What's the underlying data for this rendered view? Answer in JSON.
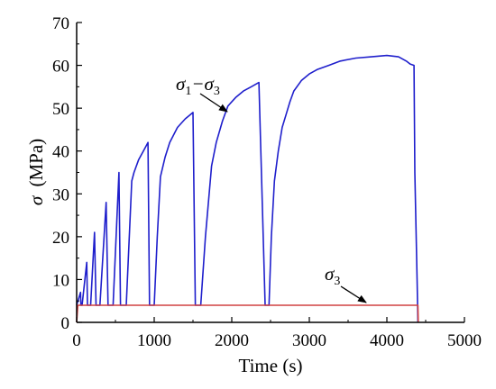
{
  "chart_data": {
    "type": "line",
    "title": "",
    "xlabel": "Time (s)",
    "ylabel": {
      "symbol": "σ",
      "unit": "(MPa)"
    },
    "xlim": [
      0,
      5000
    ],
    "ylim": [
      0,
      70
    ],
    "xticks": [
      "0",
      "1000",
      "2000",
      "3000",
      "4000",
      "5000"
    ],
    "yticks": [
      "0",
      "10",
      "20",
      "30",
      "40",
      "50",
      "60",
      "70"
    ],
    "grid": false,
    "colors": {
      "deviatoric": "#1f1fcc",
      "confining": "#d04040",
      "axes": "#000000"
    },
    "series": [
      {
        "name": "σ1−σ3",
        "color": "#1f1fcc",
        "x": [
          0,
          50,
          55,
          65,
          70,
          130,
          140,
          170,
          180,
          230,
          250,
          285,
          300,
          380,
          405,
          440,
          470,
          545,
          565,
          610,
          640,
          710,
          740,
          800,
          860,
          920,
          940,
          975,
          1000,
          1040,
          1080,
          1140,
          1200,
          1300,
          1400,
          1500,
          1530,
          1570,
          1600,
          1660,
          1740,
          1800,
          1880,
          1950,
          2050,
          2150,
          2250,
          2350,
          2430,
          2460,
          2480,
          2510,
          2550,
          2600,
          2650,
          2700,
          2750,
          2800,
          2900,
          3000,
          3100,
          3250,
          3400,
          3600,
          3800,
          4000,
          4150,
          4250,
          4300,
          4350,
          4360,
          4390,
          4400
        ],
        "y": [
          4,
          7,
          4,
          4,
          4,
          14,
          4,
          4,
          4,
          21,
          4,
          4,
          4,
          28,
          4,
          4,
          4,
          35,
          4,
          4,
          4,
          33,
          35,
          38,
          40,
          42,
          4,
          4,
          4,
          20,
          34,
          38.5,
          42,
          45.5,
          47.5,
          49,
          4,
          4,
          4,
          20,
          36.5,
          42,
          47,
          50.5,
          52.5,
          54,
          55,
          56,
          4,
          4,
          4,
          20,
          33,
          40,
          45.5,
          48.5,
          51.5,
          54,
          56.5,
          58,
          59,
          60,
          61,
          61.7,
          62,
          62.3,
          62,
          61,
          60.3,
          60,
          35,
          10,
          0
        ]
      },
      {
        "name": "σ3",
        "color": "#d04040",
        "x": [
          0,
          15,
          30,
          4400,
          4405
        ],
        "y": [
          0,
          4,
          4,
          4,
          0
        ]
      }
    ],
    "annotations": [
      {
        "label_main": "σ",
        "label_sub": "1",
        "label_mid": "−σ",
        "label_sub2": "3",
        "target_x": 1950,
        "target_y": 49.5
      },
      {
        "label_main": "σ",
        "label_sub": "3",
        "target_x": 3450,
        "target_y": 4.5
      }
    ]
  }
}
